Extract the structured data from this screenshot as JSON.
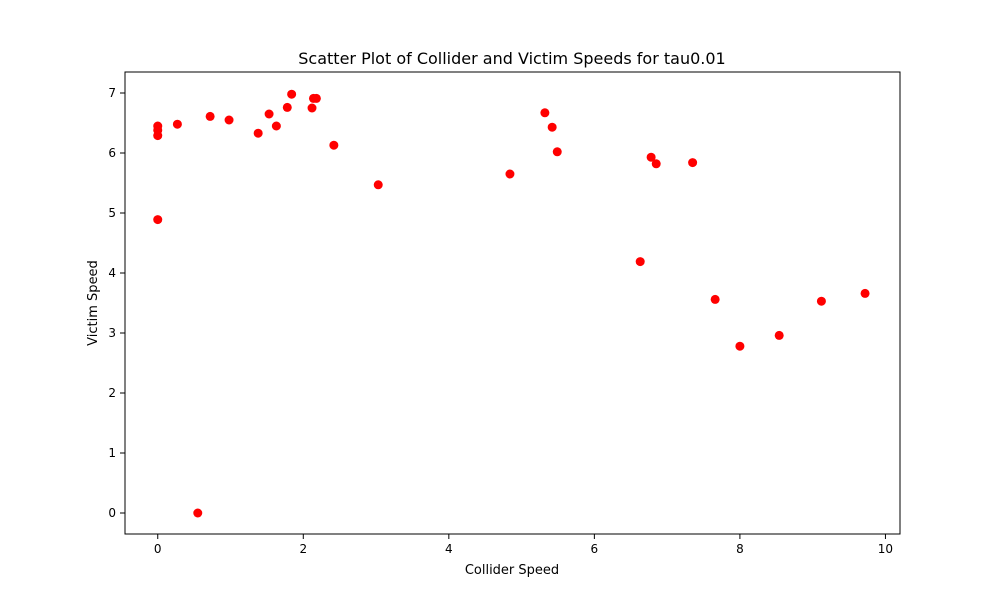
{
  "chart_data": {
    "type": "scatter",
    "title": "Scatter Plot of Collider and Victim Speeds for tau0.01",
    "xlabel": "Collider Speed",
    "ylabel": "Victim Speed",
    "xlim": [
      -0.45,
      10.2
    ],
    "ylim": [
      -0.35,
      7.35
    ],
    "xticks": [
      0,
      2,
      4,
      6,
      8,
      10
    ],
    "yticks": [
      0,
      1,
      2,
      3,
      4,
      5,
      6,
      7
    ],
    "grid": false,
    "marker_color": "#ff0000",
    "series": [
      {
        "points": [
          [
            0.0,
            6.45
          ],
          [
            0.0,
            6.38
          ],
          [
            0.0,
            6.29
          ],
          [
            0.0,
            4.89
          ],
          [
            0.27,
            6.48
          ],
          [
            0.55,
            0.0
          ],
          [
            0.72,
            6.61
          ],
          [
            0.98,
            6.55
          ],
          [
            1.38,
            6.33
          ],
          [
            1.53,
            6.65
          ],
          [
            1.63,
            6.45
          ],
          [
            1.78,
            6.76
          ],
          [
            1.84,
            6.98
          ],
          [
            2.12,
            6.75
          ],
          [
            2.14,
            6.91
          ],
          [
            2.18,
            6.91
          ],
          [
            2.42,
            6.13
          ],
          [
            3.03,
            5.47
          ],
          [
            4.84,
            5.65
          ],
          [
            5.32,
            6.67
          ],
          [
            5.42,
            6.43
          ],
          [
            5.49,
            6.02
          ],
          [
            6.63,
            4.19
          ],
          [
            6.78,
            5.93
          ],
          [
            6.85,
            5.82
          ],
          [
            7.35,
            5.84
          ],
          [
            7.66,
            3.56
          ],
          [
            8.0,
            2.78
          ],
          [
            8.54,
            2.96
          ],
          [
            9.12,
            3.53
          ],
          [
            9.72,
            3.66
          ]
        ]
      }
    ]
  }
}
